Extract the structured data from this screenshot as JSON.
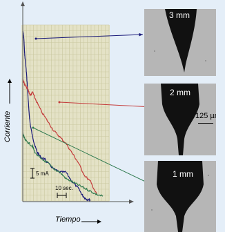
{
  "chart_data": {
    "type": "line",
    "title": "",
    "xlabel": "Tiempo",
    "ylabel": "Corriente",
    "x_unit": "s",
    "y_unit": "mA",
    "xlim": [
      0,
      70
    ],
    "ylim": [
      0,
      55
    ],
    "grid": true,
    "annotations": [
      {
        "text": "5 mA",
        "kind": "y-scale",
        "value_mA": 5
      },
      {
        "text": "10 sec.",
        "kind": "x-scale",
        "value_s": 10
      }
    ],
    "series": [
      {
        "color": "#1a1a7a",
        "image_label": "3 mm",
        "x": [
          0,
          0.5,
          1,
          1.5,
          2,
          3,
          4,
          5,
          6,
          8,
          10,
          12,
          15,
          18,
          20,
          25,
          30,
          35,
          40,
          45,
          48,
          50,
          52,
          55
        ],
        "y": [
          53,
          52,
          50,
          46,
          44,
          40,
          34,
          28,
          24,
          20,
          17,
          15,
          13.5,
          13,
          12,
          10,
          9,
          9,
          6,
          4,
          2,
          1,
          0.5,
          0.3
        ]
      },
      {
        "color": "#c43a3a",
        "image_label": "2 mm",
        "x": [
          0,
          1,
          2,
          4,
          6,
          8,
          10,
          15,
          20,
          25,
          30,
          35,
          40,
          45,
          50,
          55,
          60
        ],
        "y": [
          38,
          37,
          36,
          35,
          33,
          34,
          32,
          28,
          25,
          22,
          20,
          18,
          15,
          12,
          8,
          6,
          2
        ]
      },
      {
        "color": "#2f7a4f",
        "image_label": "1 mm",
        "x": [
          0,
          1,
          2,
          5,
          8,
          10,
          15,
          20,
          25,
          30,
          35,
          40,
          45,
          50,
          55,
          60,
          65
        ],
        "y": [
          21,
          20,
          19,
          18,
          17,
          15,
          13,
          12,
          10,
          9,
          7,
          6,
          5,
          4,
          3,
          2,
          1.5
        ]
      }
    ]
  },
  "images": {
    "scale_label": "125 µm"
  }
}
